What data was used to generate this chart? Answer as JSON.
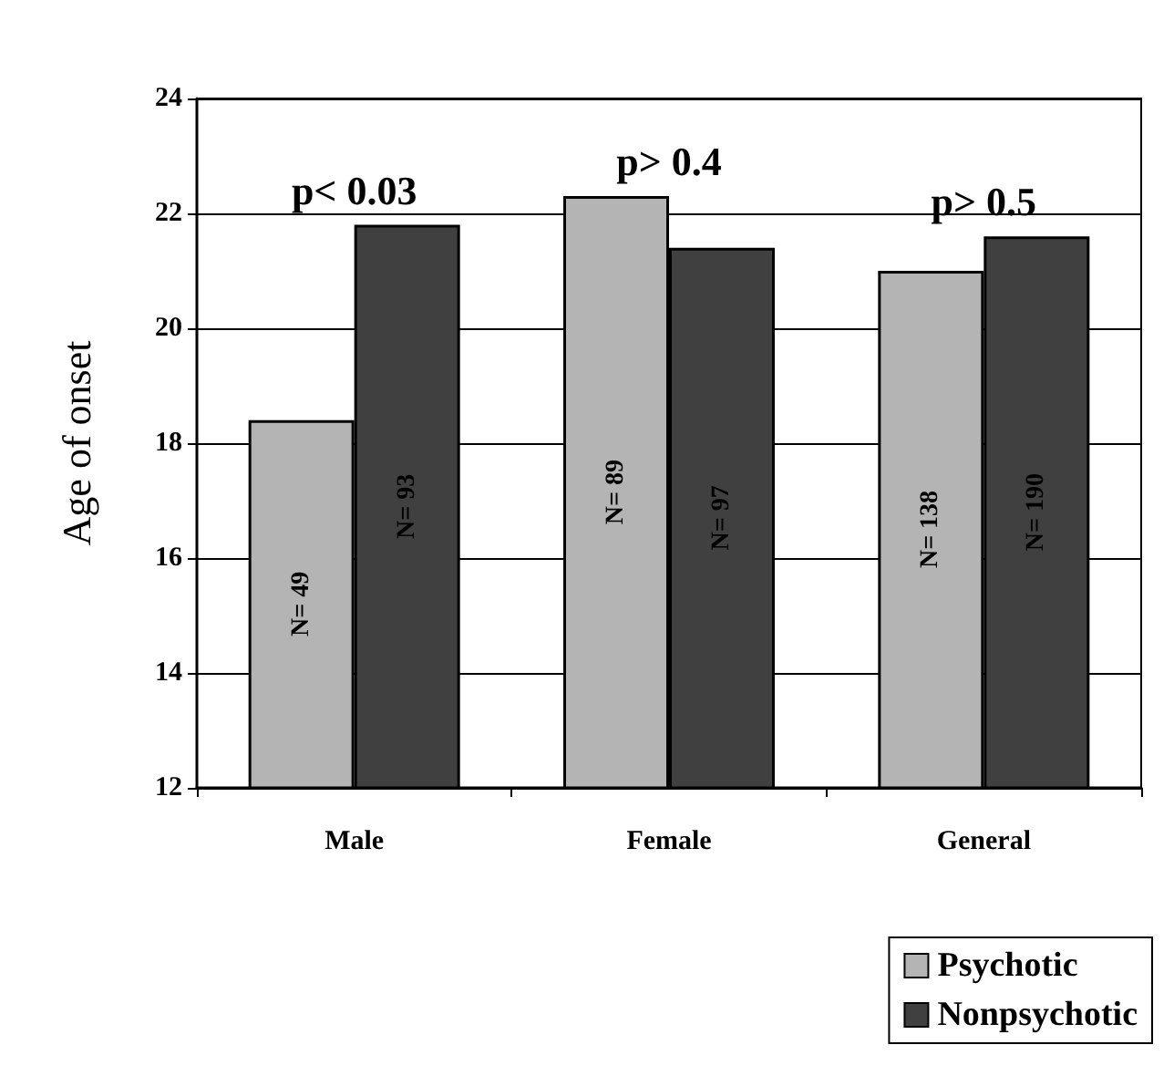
{
  "chart_data": {
    "type": "bar",
    "ylabel": "Age of onset",
    "categories": [
      "Male",
      "Female",
      "General"
    ],
    "series": [
      {
        "name": "Psychotic",
        "color": "#b4b4b4",
        "values": [
          18.4,
          22.3,
          21.0
        ]
      },
      {
        "name": "Nonpsychotic",
        "color": "#404040",
        "values": [
          21.8,
          21.4,
          21.6
        ]
      }
    ],
    "annotations": [
      "p< 0.03",
      "p> 0.4",
      "p> 0.5",
      "N= 49",
      "N= 89",
      "N= 138",
      "N= 93",
      "N= 97",
      "N= 190"
    ],
    "ylim": [
      12,
      24
    ],
    "yticks": [
      12,
      14,
      16,
      18,
      20,
      22,
      24
    ],
    "grid": "y",
    "legend": "bottom right"
  }
}
